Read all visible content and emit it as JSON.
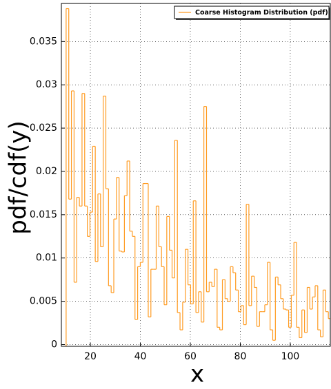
{
  "chart_data": {
    "type": "histogram",
    "xlabel": "x",
    "ylabel": "pdf/cdf(y)",
    "xlim": [
      8.4,
      116.3
    ],
    "ylim": [
      -0.0002,
      0.0394
    ],
    "xticks": [
      20,
      40,
      60,
      80,
      100
    ],
    "yticks": [
      0,
      0.005,
      0.01,
      0.015,
      0.02,
      0.025,
      0.03,
      0.035
    ],
    "grid": true,
    "legend": "upper right",
    "bins": [
      10.3,
      11.36,
      12.42,
      13.48,
      14.54,
      15.6,
      16.66,
      17.72,
      18.78,
      19.84,
      20.9,
      21.96,
      23.02,
      24.08,
      25.14,
      26.2,
      27.26,
      28.32,
      29.38,
      30.44,
      31.5,
      32.56,
      33.62,
      34.68,
      35.74,
      36.8,
      37.86,
      38.92,
      39.98,
      41.04,
      42.1,
      43.16,
      44.22,
      45.28,
      46.34,
      47.4,
      48.46,
      49.52,
      50.58,
      51.64,
      52.7,
      53.76,
      54.82,
      55.88,
      56.94,
      58.0,
      59.06,
      60.12,
      61.18,
      62.24,
      63.3,
      64.36,
      65.42,
      66.48,
      67.54,
      68.6,
      69.66,
      70.72,
      71.78,
      72.84,
      73.9,
      74.96,
      76.02,
      77.08,
      78.14,
      79.2,
      80.26,
      81.32,
      82.38,
      83.44,
      84.5,
      85.56,
      86.62,
      87.68,
      88.74,
      89.8,
      90.86,
      91.92,
      92.98,
      94.04,
      95.1,
      96.16,
      97.22,
      98.28,
      99.34,
      100.4,
      101.46,
      102.52,
      103.58,
      104.64,
      105.7,
      106.76,
      107.82,
      108.88,
      109.94,
      111.0,
      112.06,
      113.12,
      114.18,
      115.24,
      116.3
    ],
    "series": [
      {
        "name": "Coarse Histogram Distribution (pdf)",
        "color": "#ff9b21",
        "values": [
          0.0388,
          0.0168,
          0.0293,
          0.0072,
          0.017,
          0.016,
          0.029,
          0.016,
          0.0125,
          0.0153,
          0.0229,
          0.0096,
          0.0174,
          0.0113,
          0.0287,
          0.018,
          0.0068,
          0.006,
          0.0145,
          0.0193,
          0.0108,
          0.0107,
          0.0172,
          0.0212,
          0.0131,
          0.0125,
          0.0029,
          0.009,
          0.0095,
          0.0186,
          0.0186,
          0.0032,
          0.0087,
          0.0087,
          0.016,
          0.0113,
          0.009,
          0.0046,
          0.0148,
          0.0109,
          0.0077,
          0.0236,
          0.0037,
          0.0017,
          0.0049,
          0.011,
          0.0069,
          0.0047,
          0.0166,
          0.0037,
          0.0061,
          0.0026,
          0.0275,
          0.0061,
          0.0072,
          0.0067,
          0.0087,
          0.002,
          0.0017,
          0.0075,
          0.0053,
          0.005,
          0.009,
          0.0083,
          0.0063,
          0.0038,
          0.0045,
          0.0023,
          0.0162,
          0.0045,
          0.0079,
          0.0066,
          0.0021,
          0.0038,
          0.0038,
          0.0046,
          0.0095,
          0.0017,
          0.0005,
          0.0078,
          0.0069,
          0.0053,
          0.0041,
          0.004,
          0.002,
          0.0057,
          0.0118,
          0.002,
          0.0008,
          0.004,
          0.0014,
          0.0066,
          0.0041,
          0.0055,
          0.0068,
          0.0017,
          0.0009,
          0.0063,
          0.0038,
          0.003
        ]
      }
    ]
  }
}
